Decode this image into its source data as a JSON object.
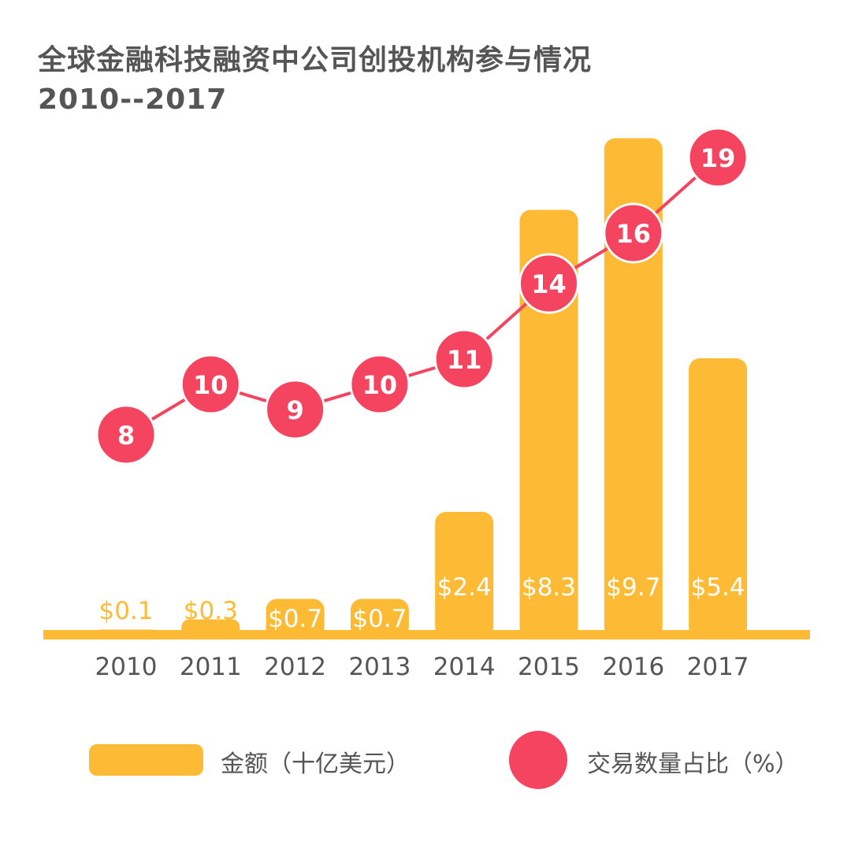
{
  "chart_data": {
    "type": "bar+line",
    "title": "全球金融科技融资中公司创投机构参与情况",
    "subtitle": "2010--2017",
    "categories": [
      "2010",
      "2011",
      "2012",
      "2013",
      "2014",
      "2015",
      "2016",
      "2017"
    ],
    "series": [
      {
        "name": "金额（十亿美元）",
        "type": "bar",
        "color": "#FDBB35",
        "values": [
          0.1,
          0.3,
          0.7,
          0.7,
          2.4,
          8.3,
          9.7,
          5.4
        ],
        "labels": [
          "$0.1",
          "$0.3",
          "$0.7",
          "$0.7",
          "$2.4",
          "$8.3",
          "$9.7",
          "$5.4"
        ]
      },
      {
        "name": "交易数量占比（%）",
        "type": "line",
        "color": "#F5445F",
        "values": [
          8,
          10,
          9,
          10,
          11,
          14,
          16,
          19
        ]
      }
    ],
    "ylim_bar": [
      0,
      9.7
    ],
    "legend": "bottom"
  }
}
